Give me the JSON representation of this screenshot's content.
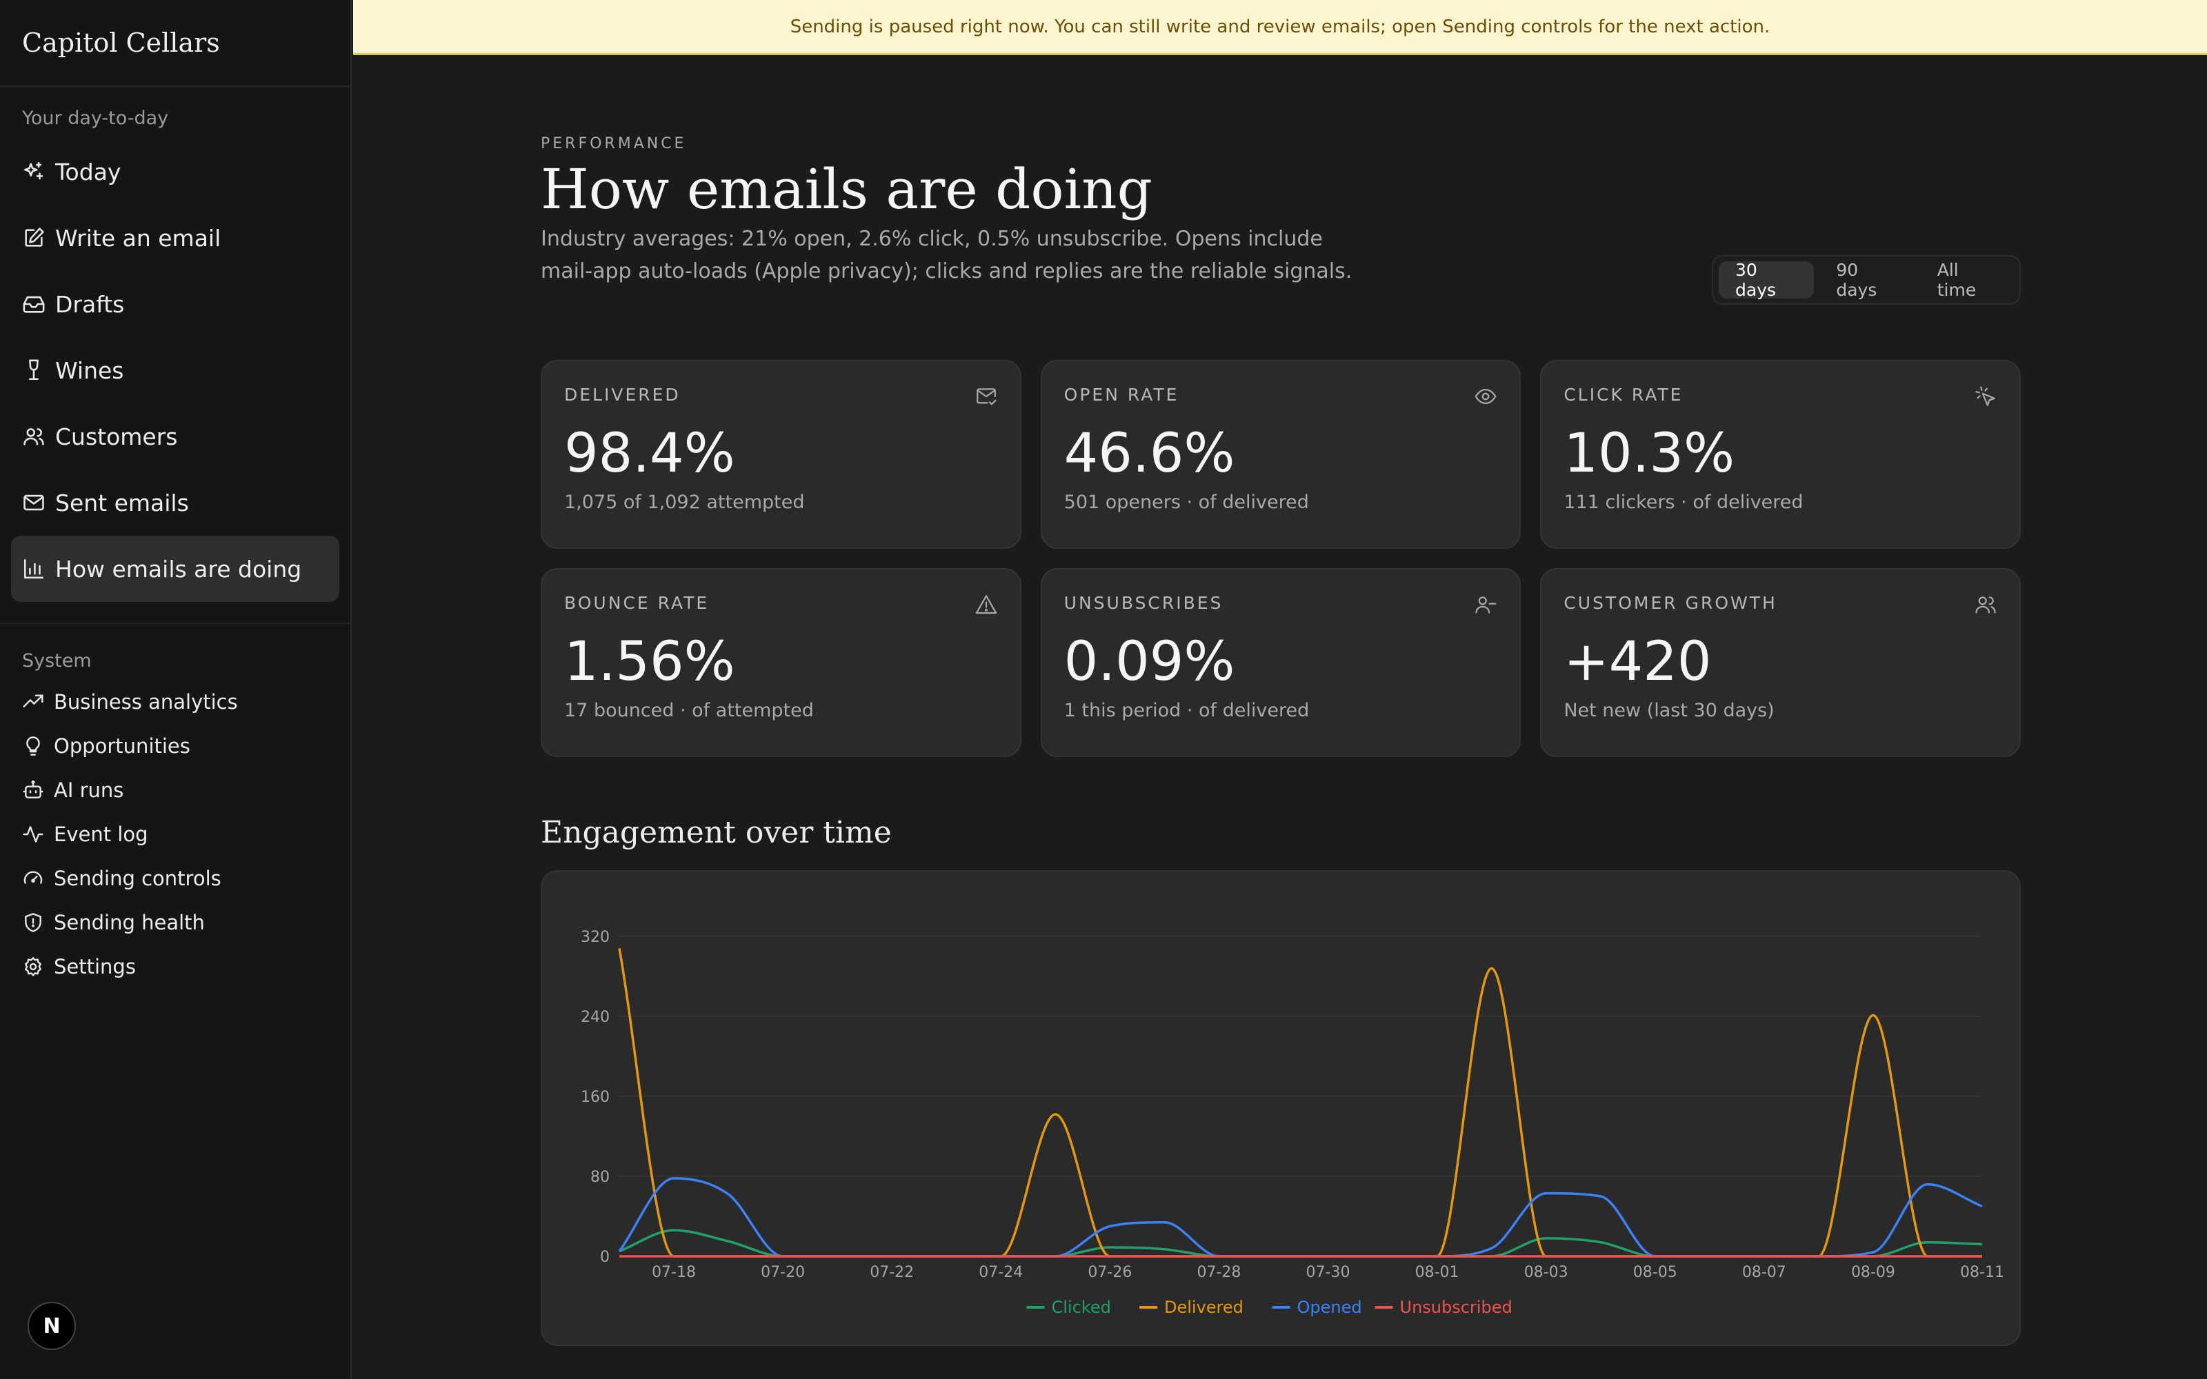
{
  "app": {
    "brand": "Capitol Cellars"
  },
  "banner": {
    "text": "Sending is paused right now. You can still write and review emails; open Sending controls for the next action."
  },
  "sidebar": {
    "main_label": "Your day-to-day",
    "main_items": [
      {
        "label": "Today",
        "icon": "sparkle-icon"
      },
      {
        "label": "Write an email",
        "icon": "pencil-square-icon"
      },
      {
        "label": "Drafts",
        "icon": "inbox-icon"
      },
      {
        "label": "Wines",
        "icon": "wine-glass-icon"
      },
      {
        "label": "Customers",
        "icon": "users-icon"
      },
      {
        "label": "Sent emails",
        "icon": "mail-icon"
      },
      {
        "label": "How emails are doing",
        "icon": "bar-chart-icon",
        "active": true
      }
    ],
    "system_label": "System",
    "system_items": [
      {
        "label": "Business analytics",
        "icon": "trending-up-icon"
      },
      {
        "label": "Opportunities",
        "icon": "lightbulb-icon"
      },
      {
        "label": "AI runs",
        "icon": "bot-icon"
      },
      {
        "label": "Event log",
        "icon": "activity-icon"
      },
      {
        "label": "Sending controls",
        "icon": "gauge-icon"
      },
      {
        "label": "Sending health",
        "icon": "shield-icon"
      },
      {
        "label": "Settings",
        "icon": "gear-icon"
      }
    ],
    "badge": "N"
  },
  "header": {
    "eyebrow": "PERFORMANCE",
    "title": "How emails are doing",
    "subtitle": "Industry averages: 21% open, 2.6% click, 0.5% unsubscribe. Opens include mail-app auto-loads (Apple privacy); clicks and replies are the reliable signals."
  },
  "range": {
    "options": [
      "30 days",
      "90 days",
      "All time"
    ],
    "selected": "30 days"
  },
  "metrics": [
    {
      "label": "DELIVERED",
      "value": "98.4%",
      "sub": "1,075 of 1,092 attempted",
      "icon": "mail-check-icon"
    },
    {
      "label": "OPEN RATE",
      "value": "46.6%",
      "sub": "501 openers · of delivered",
      "icon": "eye-icon"
    },
    {
      "label": "CLICK RATE",
      "value": "10.3%",
      "sub": "111 clickers · of delivered",
      "icon": "cursor-click-icon"
    },
    {
      "label": "BOUNCE RATE",
      "value": "1.56%",
      "sub": "17 bounced · of attempted",
      "icon": "warning-icon"
    },
    {
      "label": "UNSUBSCRIBES",
      "value": "0.09%",
      "sub": "1 this period · of delivered",
      "icon": "user-minus-icon"
    },
    {
      "label": "CUSTOMER GROWTH",
      "value": "+420",
      "sub": "Net new (last 30 days)",
      "icon": "users-icon"
    }
  ],
  "chart_section": {
    "title": "Engagement over time"
  },
  "chart_data": {
    "type": "line",
    "x": [
      "07-17",
      "07-18",
      "07-19",
      "07-20",
      "07-21",
      "07-22",
      "07-23",
      "07-24",
      "07-25",
      "07-26",
      "07-27",
      "07-28",
      "07-29",
      "07-30",
      "07-31",
      "08-01",
      "08-02",
      "08-03",
      "08-04",
      "08-05",
      "08-06",
      "08-07",
      "08-08",
      "08-09",
      "08-10",
      "08-11"
    ],
    "x_tick_labels": [
      "07-18",
      "07-20",
      "07-22",
      "07-24",
      "07-26",
      "07-28",
      "07-30",
      "08-01",
      "08-03",
      "08-05",
      "08-07",
      "08-09",
      "08-11"
    ],
    "y_ticks": [
      0,
      80,
      160,
      240,
      320
    ],
    "ylim": [
      0,
      320
    ],
    "series": [
      {
        "name": "Clicked",
        "color": "#22a06b",
        "values": [
          5,
          26,
          15,
          0,
          0,
          0,
          0,
          0,
          0,
          9,
          7,
          0,
          0,
          0,
          0,
          0,
          0,
          18,
          14,
          0,
          0,
          0,
          0,
          0,
          14,
          12
        ]
      },
      {
        "name": "Delivered",
        "color": "#e3980f",
        "values": [
          308,
          0,
          0,
          0,
          0,
          0,
          0,
          0,
          142,
          0,
          0,
          0,
          0,
          0,
          0,
          0,
          288,
          0,
          0,
          0,
          0,
          0,
          0,
          241,
          0,
          0
        ]
      },
      {
        "name": "Opened",
        "color": "#3b82f6",
        "values": [
          5,
          78,
          62,
          0,
          0,
          0,
          0,
          0,
          0,
          30,
          34,
          0,
          0,
          0,
          0,
          0,
          8,
          63,
          60,
          0,
          0,
          0,
          0,
          4,
          72,
          50
        ]
      },
      {
        "name": "Unsubscribed",
        "color": "#ef5350",
        "values": [
          0,
          0,
          0,
          0,
          0,
          0,
          0,
          0,
          0,
          0,
          0,
          0,
          0,
          0,
          0,
          0,
          0,
          0,
          0,
          0,
          0,
          0,
          0,
          0,
          0,
          0
        ]
      }
    ],
    "legend": "bottom-center",
    "grid": true
  }
}
